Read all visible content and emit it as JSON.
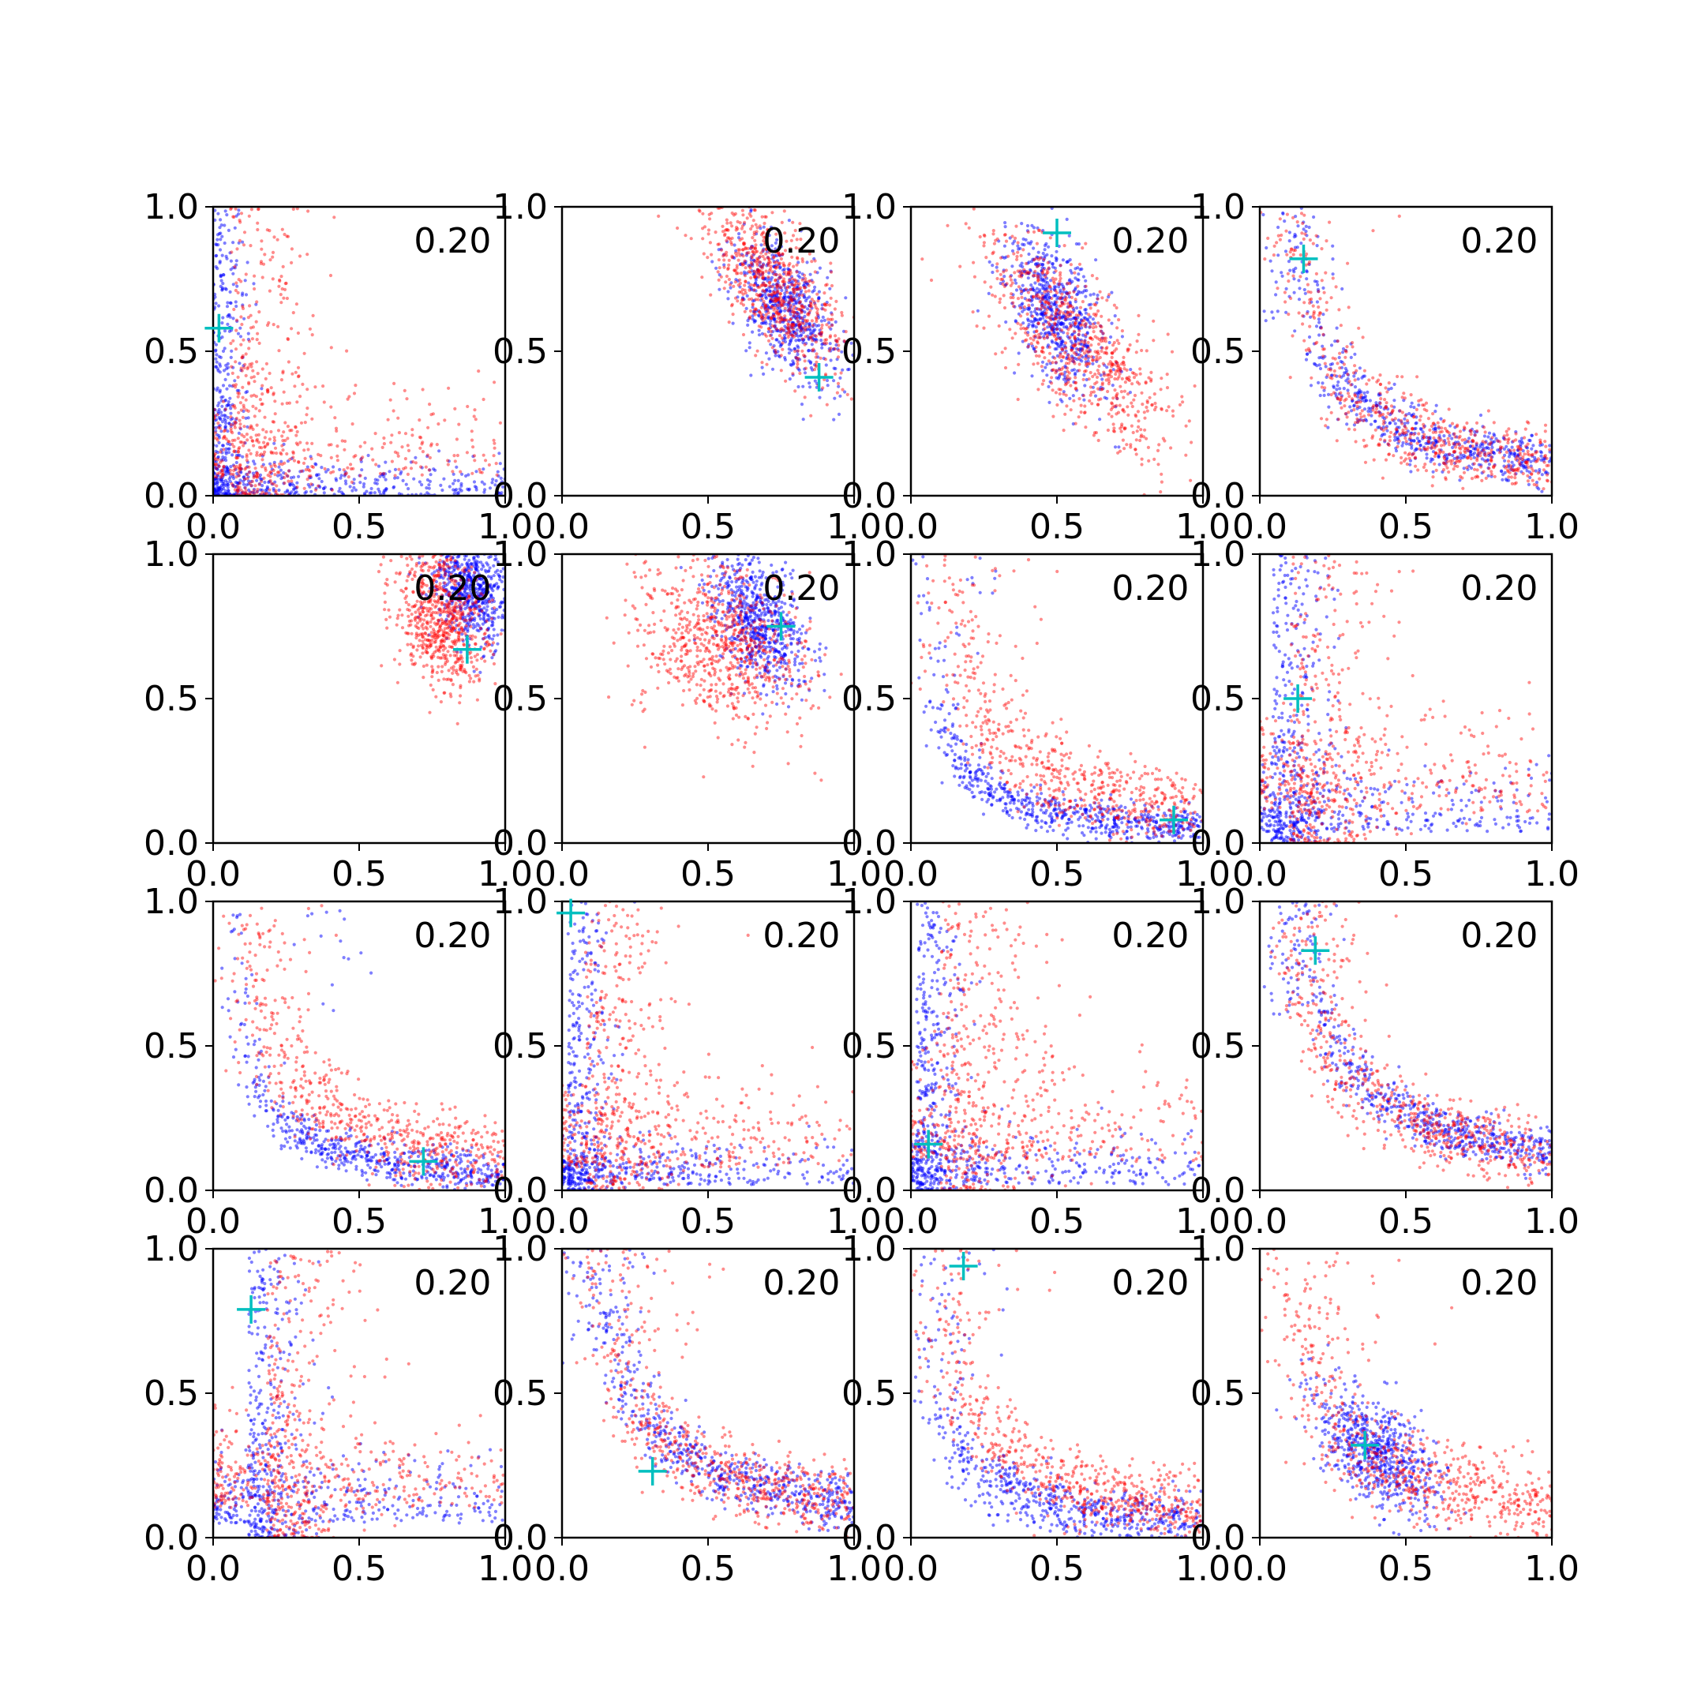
{
  "figure": {
    "layout": {
      "rows": 4,
      "cols": 4
    },
    "colors": {
      "series_a": "#0000ff",
      "series_b": "#ff0000",
      "marker": "#00bfbf",
      "axes": "#000000"
    }
  },
  "chart_data": [
    {
      "type": "scatter",
      "annotation": "0.20",
      "xlim": [
        0,
        1
      ],
      "ylim": [
        0,
        1
      ],
      "ticks": [
        0.0,
        0.5,
        1.0
      ],
      "tick_labels": [
        "0.0",
        "0.5",
        "1.0"
      ],
      "marker": {
        "x": 0.02,
        "y": 0.58
      },
      "series_a": {
        "kind": "lshape",
        "cx": 0.0,
        "cy": 0.0,
        "spread": 0.06,
        "n": 700
      },
      "series_b": {
        "kind": "lshape",
        "cx": 0.06,
        "cy": 0.06,
        "spread": 0.14,
        "n": 650
      }
    },
    {
      "type": "scatter",
      "annotation": "0.20",
      "xlim": [
        0,
        1
      ],
      "ylim": [
        0,
        1
      ],
      "ticks": [
        0.0,
        0.5,
        1.0
      ],
      "tick_labels": [
        "0.0",
        "0.5",
        "1.0"
      ],
      "marker": {
        "x": 0.88,
        "y": 0.41
      },
      "series_a": {
        "kind": "blob",
        "cx": 0.76,
        "cy": 0.65,
        "sx": 0.09,
        "sy": 0.13,
        "rho": -0.6,
        "n": 650
      },
      "series_b": {
        "kind": "blob",
        "cx": 0.72,
        "cy": 0.74,
        "sx": 0.12,
        "sy": 0.16,
        "rho": -0.7,
        "n": 750
      }
    },
    {
      "type": "scatter",
      "annotation": "0.20",
      "xlim": [
        0,
        1
      ],
      "ylim": [
        0,
        1
      ],
      "ticks": [
        0.0,
        0.5,
        1.0
      ],
      "tick_labels": [
        "0.0",
        "0.5",
        "1.0"
      ],
      "marker": {
        "x": 0.5,
        "y": 0.91
      },
      "series_a": {
        "kind": "blob",
        "cx": 0.5,
        "cy": 0.62,
        "sx": 0.09,
        "sy": 0.14,
        "rho": -0.5,
        "n": 650
      },
      "series_b": {
        "kind": "blob",
        "cx": 0.58,
        "cy": 0.52,
        "sx": 0.17,
        "sy": 0.2,
        "rho": -0.75,
        "n": 750
      }
    },
    {
      "type": "scatter",
      "annotation": "0.20",
      "xlim": [
        0,
        1
      ],
      "ylim": [
        0,
        1
      ],
      "ticks": [
        0.0,
        0.5,
        1.0
      ],
      "tick_labels": [
        "0.0",
        "0.5",
        "1.0"
      ],
      "marker": {
        "x": 0.15,
        "y": 0.82
      },
      "series_a": {
        "kind": "decay",
        "x0": 0.15,
        "y0": 0.85,
        "spread": 0.09,
        "n": 650
      },
      "series_b": {
        "kind": "decay",
        "x0": 0.28,
        "y0": 0.45,
        "spread": 0.12,
        "n": 650
      }
    },
    {
      "type": "scatter",
      "annotation": "0.20",
      "xlim": [
        0,
        1
      ],
      "ylim": [
        0,
        1
      ],
      "ticks": [
        0.0,
        0.5,
        1.0
      ],
      "tick_labels": [
        "0.0",
        "0.5",
        "1.0"
      ],
      "marker": {
        "x": 0.87,
        "y": 0.67
      },
      "series_a": {
        "kind": "blob",
        "cx": 0.88,
        "cy": 0.88,
        "sx": 0.07,
        "sy": 0.1,
        "rho": -0.3,
        "n": 650
      },
      "series_b": {
        "kind": "blob",
        "cx": 0.78,
        "cy": 0.78,
        "sx": 0.08,
        "sy": 0.12,
        "rho": -0.3,
        "n": 700
      }
    },
    {
      "type": "scatter",
      "annotation": "0.20",
      "xlim": [
        0,
        1
      ],
      "ylim": [
        0,
        1
      ],
      "ticks": [
        0.0,
        0.5,
        1.0
      ],
      "tick_labels": [
        "0.0",
        "0.5",
        "1.0"
      ],
      "marker": {
        "x": 0.75,
        "y": 0.75
      },
      "series_a": {
        "kind": "blob",
        "cx": 0.67,
        "cy": 0.77,
        "sx": 0.08,
        "sy": 0.11,
        "rho": -0.4,
        "n": 650
      },
      "series_b": {
        "kind": "blob",
        "cx": 0.56,
        "cy": 0.68,
        "sx": 0.15,
        "sy": 0.14,
        "rho": -0.3,
        "n": 750
      }
    },
    {
      "type": "scatter",
      "annotation": "0.20",
      "xlim": [
        0,
        1
      ],
      "ylim": [
        0,
        1
      ],
      "ticks": [
        0.0,
        0.5,
        1.0
      ],
      "tick_labels": [
        "0.0",
        "0.5",
        "1.0"
      ],
      "marker": {
        "x": 0.9,
        "y": 0.08
      },
      "series_a": {
        "kind": "decay",
        "x0": 0.35,
        "y0": 0.16,
        "spread": 0.07,
        "n": 650
      },
      "series_b": {
        "kind": "decay",
        "x0": 0.3,
        "y0": 0.4,
        "spread": 0.14,
        "n": 650
      }
    },
    {
      "type": "scatter",
      "annotation": "0.20",
      "xlim": [
        0,
        1
      ],
      "ylim": [
        0,
        1
      ],
      "ticks": [
        0.0,
        0.5,
        1.0
      ],
      "tick_labels": [
        "0.0",
        "0.5",
        "1.0"
      ],
      "marker": {
        "x": 0.13,
        "y": 0.5
      },
      "series_a": {
        "kind": "lshape",
        "cx": 0.04,
        "cy": 0.04,
        "spread": 0.1,
        "n": 650
      },
      "series_b": {
        "kind": "lshape",
        "cx": 0.1,
        "cy": 0.1,
        "spread": 0.16,
        "n": 650
      }
    },
    {
      "type": "scatter",
      "annotation": "0.20",
      "xlim": [
        0,
        1
      ],
      "ylim": [
        0,
        1
      ],
      "ticks": [
        0.0,
        0.5,
        1.0
      ],
      "tick_labels": [
        "0.0",
        "0.5",
        "1.0"
      ],
      "marker": {
        "x": 0.72,
        "y": 0.1
      },
      "series_a": {
        "kind": "decay",
        "x0": 0.65,
        "y0": 0.1,
        "spread": 0.07,
        "n": 600
      },
      "series_b": {
        "kind": "decay",
        "x0": 0.3,
        "y0": 0.4,
        "spread": 0.13,
        "n": 650
      }
    },
    {
      "type": "scatter",
      "annotation": "0.20",
      "xlim": [
        0,
        1
      ],
      "ylim": [
        0,
        1
      ],
      "ticks": [
        0.0,
        0.5,
        1.0
      ],
      "tick_labels": [
        "0.0",
        "0.5",
        "1.0"
      ],
      "marker": {
        "x": 0.03,
        "y": 0.96
      },
      "series_a": {
        "kind": "lshape",
        "cx": 0.02,
        "cy": 0.02,
        "spread": 0.07,
        "n": 650
      },
      "series_b": {
        "kind": "lshape",
        "cx": 0.08,
        "cy": 0.08,
        "spread": 0.15,
        "n": 650
      }
    },
    {
      "type": "scatter",
      "annotation": "0.20",
      "xlim": [
        0,
        1
      ],
      "ylim": [
        0,
        1
      ],
      "ticks": [
        0.0,
        0.5,
        1.0
      ],
      "tick_labels": [
        "0.0",
        "0.5",
        "1.0"
      ],
      "marker": {
        "x": 0.06,
        "y": 0.16
      },
      "series_a": {
        "kind": "lshape",
        "cx": 0.02,
        "cy": 0.02,
        "spread": 0.08,
        "n": 650
      },
      "series_b": {
        "kind": "lshape",
        "cx": 0.1,
        "cy": 0.1,
        "spread": 0.17,
        "n": 650
      }
    },
    {
      "type": "scatter",
      "annotation": "0.20",
      "xlim": [
        0,
        1
      ],
      "ylim": [
        0,
        1
      ],
      "ticks": [
        0.0,
        0.5,
        1.0
      ],
      "tick_labels": [
        "0.0",
        "0.5",
        "1.0"
      ],
      "marker": {
        "x": 0.19,
        "y": 0.83
      },
      "series_a": {
        "kind": "decay",
        "x0": 0.18,
        "y0": 0.82,
        "spread": 0.08,
        "n": 650
      },
      "series_b": {
        "kind": "decay",
        "x0": 0.33,
        "y0": 0.42,
        "spread": 0.12,
        "n": 650
      }
    },
    {
      "type": "scatter",
      "annotation": "0.20",
      "xlim": [
        0,
        1
      ],
      "ylim": [
        0,
        1
      ],
      "ticks": [
        0.0,
        0.5,
        1.0
      ],
      "tick_labels": [
        "0.0",
        "0.5",
        "1.0"
      ],
      "marker": {
        "x": 0.13,
        "y": 0.79
      },
      "series_a": {
        "kind": "lshape",
        "cx": 0.12,
        "cy": 0.05,
        "spread": 0.1,
        "n": 650
      },
      "series_b": {
        "kind": "lshape",
        "cx": 0.18,
        "cy": 0.1,
        "spread": 0.15,
        "n": 650
      }
    },
    {
      "type": "scatter",
      "annotation": "0.20",
      "xlim": [
        0,
        1
      ],
      "ylim": [
        0,
        1
      ],
      "ticks": [
        0.0,
        0.5,
        1.0
      ],
      "tick_labels": [
        "0.0",
        "0.5",
        "1.0"
      ],
      "marker": {
        "x": 0.31,
        "y": 0.23
      },
      "series_a": {
        "kind": "decay",
        "x0": 0.22,
        "y0": 0.62,
        "spread": 0.09,
        "n": 650
      },
      "series_b": {
        "kind": "decay",
        "x0": 0.45,
        "y0": 0.3,
        "spread": 0.13,
        "n": 650
      }
    },
    {
      "type": "scatter",
      "annotation": "0.20",
      "xlim": [
        0,
        1
      ],
      "ylim": [
        0,
        1
      ],
      "ticks": [
        0.0,
        0.5,
        1.0
      ],
      "tick_labels": [
        "0.0",
        "0.5",
        "1.0"
      ],
      "marker": {
        "x": 0.18,
        "y": 0.94
      },
      "series_a": {
        "kind": "decay",
        "x0": 0.3,
        "y0": 0.2,
        "spread": 0.1,
        "n": 650
      },
      "series_b": {
        "kind": "decay",
        "x0": 0.22,
        "y0": 0.5,
        "spread": 0.12,
        "n": 650
      }
    },
    {
      "type": "scatter",
      "annotation": "0.20",
      "xlim": [
        0,
        1
      ],
      "ylim": [
        0,
        1
      ],
      "ticks": [
        0.0,
        0.5,
        1.0
      ],
      "tick_labels": [
        "0.0",
        "0.5",
        "1.0"
      ],
      "marker": {
        "x": 0.36,
        "y": 0.32
      },
      "series_a": {
        "kind": "blob",
        "cx": 0.4,
        "cy": 0.3,
        "sx": 0.11,
        "sy": 0.11,
        "rho": -0.6,
        "n": 650
      },
      "series_b": {
        "kind": "decay",
        "x0": 0.3,
        "y0": 0.4,
        "spread": 0.15,
        "n": 700
      }
    }
  ]
}
